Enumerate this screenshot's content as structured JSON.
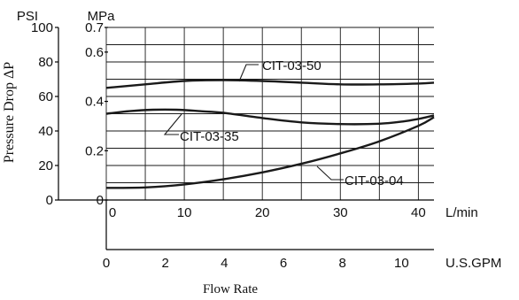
{
  "chart_data": {
    "type": "line",
    "ylabel": "Pressure Drop ΔP",
    "xlabel": "Flow Rate",
    "y_axes": [
      {
        "unit": "PSI",
        "ticks": [
          "0",
          "20",
          "40",
          "60",
          "80",
          "100"
        ],
        "ylim": [
          0,
          100
        ]
      },
      {
        "unit": "MPa",
        "ticks": [
          "0",
          "0.2",
          "0.4",
          "0.6",
          "0.7"
        ],
        "ylim": [
          0,
          0.7
        ]
      }
    ],
    "x_axes": [
      {
        "unit": "L/min",
        "ticks": [
          "0",
          "10",
          "20",
          "30",
          "40"
        ],
        "xlim": [
          0,
          42
        ]
      },
      {
        "unit": "U.S.GPM",
        "ticks": [
          "0",
          "2",
          "4",
          "6",
          "8",
          "10"
        ],
        "xlim": [
          0,
          11.1
        ]
      }
    ],
    "series": [
      {
        "name": "CIT-03-50",
        "x": [
          0,
          5,
          10,
          15,
          20,
          25,
          30,
          35,
          40,
          42
        ],
        "y": [
          65,
          67,
          69,
          69.5,
          69,
          68,
          67,
          67,
          67.5,
          68
        ]
      },
      {
        "name": "CIT-03-35",
        "x": [
          0,
          3,
          6,
          9,
          12,
          15,
          20,
          25,
          30,
          35,
          38,
          40,
          42
        ],
        "y": [
          50,
          51.5,
          52.3,
          52.3,
          51.5,
          50.5,
          47.5,
          45,
          44,
          44.2,
          45.5,
          47,
          49
        ]
      },
      {
        "name": "CIT-03-04",
        "x": [
          0,
          5,
          10,
          15,
          20,
          25,
          30,
          35,
          40,
          42
        ],
        "y": [
          7,
          7.3,
          9,
          12,
          16,
          21,
          27,
          34,
          43,
          48
        ]
      }
    ]
  }
}
